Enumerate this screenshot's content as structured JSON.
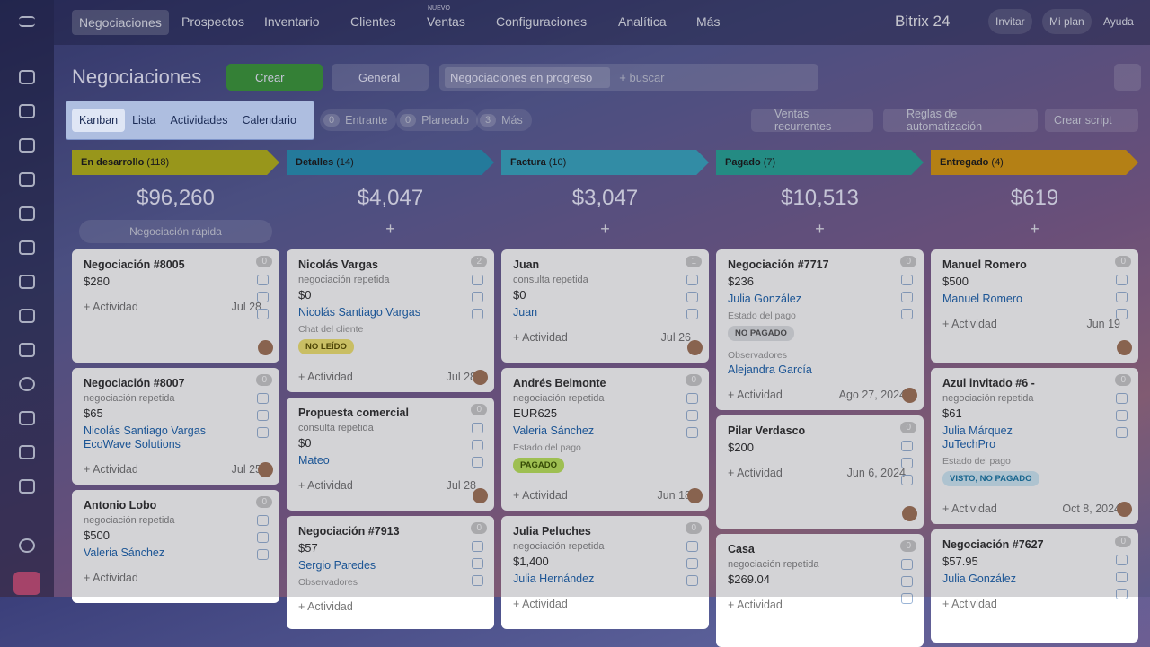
{
  "nav": {
    "items": [
      "Negociaciones",
      "Prospectos",
      "Inventario",
      "Clientes",
      "Ventas",
      "Configuraciones",
      "Analítica",
      "Más"
    ],
    "badge": "NUEVO",
    "brand": "Bitrix 24",
    "actions": [
      "Invitar",
      "Mi plan",
      "Ayuda"
    ]
  },
  "toolbar": {
    "title": "Negociaciones",
    "create": "Crear",
    "filter": "General",
    "tag": "Negociaciones en progreso",
    "search": "+ buscar"
  },
  "views": [
    "Kanban",
    "Lista",
    "Actividades",
    "Calendario"
  ],
  "counters": [
    {
      "count": "0",
      "label": "Entrante"
    },
    {
      "count": "0",
      "label": "Planeado"
    },
    {
      "count": "3",
      "label": "Más"
    }
  ],
  "tools": [
    "Ventas recurrentes",
    "Reglas de automatización",
    "Crear script"
  ],
  "board": {
    "quick": "Negociación rápida",
    "activity": "+ Actividad",
    "columns": [
      {
        "name": "En desarrollo",
        "count": "(118)",
        "total": "$96,260",
        "color": "#b7b51c",
        "cards": [
          {
            "title": "Negociación #8005",
            "badge": "0",
            "lines": [
              {
                "kind": "amount",
                "text": "$280"
              }
            ],
            "date": "Jul 28"
          },
          {
            "title": "Negociación #8007",
            "badge": "0",
            "lines": [
              {
                "kind": "sub",
                "text": "negociación repetida"
              },
              {
                "kind": "amount",
                "text": "$65"
              },
              {
                "kind": "link",
                "text": "Nicolás Santiago Vargas"
              },
              {
                "kind": "link",
                "text": "EcoWave Solutions"
              }
            ],
            "date": "Jul 25"
          },
          {
            "title": "Antonio Lobo",
            "badge": "0",
            "lines": [
              {
                "kind": "sub",
                "text": "negociación repetida"
              },
              {
                "kind": "amount",
                "text": "$500"
              },
              {
                "kind": "link",
                "text": "Valeria Sánchez"
              }
            ]
          }
        ]
      },
      {
        "name": "Detalles",
        "count": "(14)",
        "total": "$4,047",
        "color": "#2a93b8",
        "cards": [
          {
            "title": "Nicolás Vargas",
            "badge": "2",
            "lines": [
              {
                "kind": "sub",
                "text": "negociación repetida"
              },
              {
                "kind": "amount",
                "text": "$0"
              },
              {
                "kind": "link",
                "text": "Nicolás Santiago Vargas"
              },
              {
                "kind": "label",
                "text": "Chat del cliente"
              },
              {
                "kind": "pill",
                "tone": "yellow",
                "text": "NO LEÍDO"
              }
            ],
            "date": "Jul 28"
          },
          {
            "title": "Propuesta comercial",
            "badge": "0",
            "lines": [
              {
                "kind": "sub",
                "text": "consulta repetida"
              },
              {
                "kind": "amount",
                "text": "$0"
              },
              {
                "kind": "link",
                "text": "Mateo"
              }
            ],
            "date": "Jul 28"
          },
          {
            "title": "Negociación #7913",
            "badge": "0",
            "lines": [
              {
                "kind": "amount",
                "text": "$57"
              },
              {
                "kind": "link",
                "text": "Sergio Paredes"
              },
              {
                "kind": "label",
                "text": "Observadores"
              }
            ]
          }
        ]
      },
      {
        "name": "Factura",
        "count": "(10)",
        "total": "$3,047",
        "color": "#3ba9c4",
        "cards": [
          {
            "title": "Juan",
            "badge": "1",
            "lines": [
              {
                "kind": "sub",
                "text": "consulta repetida"
              },
              {
                "kind": "amount",
                "text": "$0"
              },
              {
                "kind": "link",
                "text": "Juan"
              }
            ],
            "date": "Jul 26"
          },
          {
            "title": "Andrés Belmonte",
            "badge": "0",
            "lines": [
              {
                "kind": "sub",
                "text": "negociación repetida"
              },
              {
                "kind": "amount",
                "text": "EUR625"
              },
              {
                "kind": "link",
                "text": "Valeria Sánchez"
              },
              {
                "kind": "label",
                "text": "Estado del pago"
              },
              {
                "kind": "pill",
                "tone": "green",
                "text": "PAGADO"
              }
            ],
            "date": "Jun 18"
          },
          {
            "title": "Julia Peluches",
            "badge": "0",
            "lines": [
              {
                "kind": "sub",
                "text": "negociación repetida"
              },
              {
                "kind": "amount",
                "text": "$1,400"
              },
              {
                "kind": "link",
                "text": "Julia Hernández"
              }
            ]
          }
        ]
      },
      {
        "name": "Pagado",
        "count": "(7)",
        "total": "$10,513",
        "color": "#2aa89a",
        "cards": [
          {
            "title": "Negociación #7717",
            "badge": "0",
            "lines": [
              {
                "kind": "amount",
                "text": "$236"
              },
              {
                "kind": "link",
                "text": "Julia González"
              },
              {
                "kind": "label",
                "text": "Estado del pago"
              },
              {
                "kind": "pill",
                "tone": "grey",
                "text": "NO PAGADO"
              },
              {
                "kind": "label",
                "text": "Observadores"
              },
              {
                "kind": "link",
                "text": "Alejandra García"
              }
            ],
            "date": "Ago 27, 2024"
          },
          {
            "title": "Pilar Verdasco",
            "badge": "0",
            "lines": [
              {
                "kind": "amount",
                "text": "$200"
              }
            ],
            "date": "Jun 6, 2024"
          },
          {
            "title": "Casa",
            "badge": "0",
            "lines": [
              {
                "kind": "sub",
                "text": "negociación repetida"
              },
              {
                "kind": "amount",
                "text": "$269.04"
              }
            ]
          }
        ]
      },
      {
        "name": "Entregado",
        "count": "(4)",
        "total": "$619",
        "color": "#d99a14",
        "cards": [
          {
            "title": "Manuel Romero",
            "badge": "0",
            "lines": [
              {
                "kind": "amount",
                "text": "$500"
              },
              {
                "kind": "link",
                "text": "Manuel Romero"
              }
            ],
            "date": "Jun 19"
          },
          {
            "title": "Azul invitado #6 -",
            "badge": "0",
            "lines": [
              {
                "kind": "sub",
                "text": "negociación repetida"
              },
              {
                "kind": "amount",
                "text": "$61"
              },
              {
                "kind": "link",
                "text": "Julia Márquez"
              },
              {
                "kind": "link",
                "text": "JuTechPro"
              },
              {
                "kind": "label",
                "text": "Estado del pago"
              },
              {
                "kind": "pill",
                "tone": "blue",
                "text": "VISTO, NO PAGADO"
              }
            ],
            "date": "Oct 8, 2024"
          },
          {
            "title": "Negociación #7627",
            "badge": "0",
            "lines": [
              {
                "kind": "amount",
                "text": "$57.95"
              },
              {
                "kind": "link",
                "text": "Julia González"
              }
            ]
          }
        ]
      }
    ]
  }
}
